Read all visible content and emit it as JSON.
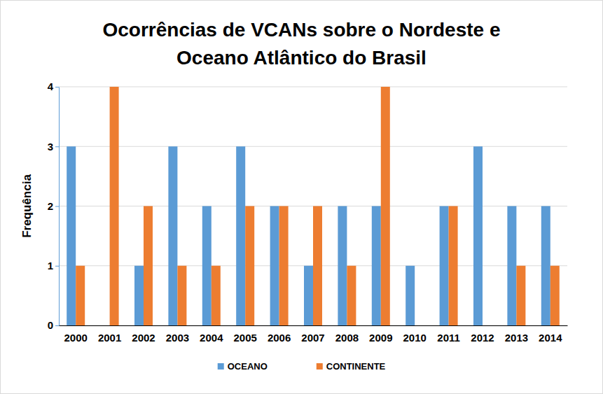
{
  "chart_data": {
    "type": "bar",
    "title": "Ocorrências de VCANs sobre o Nordeste  e\nOceano Atlântico do Brasil",
    "y_label": "Frequência",
    "categories": [
      "2000",
      "2001",
      "2002",
      "2003",
      "2004",
      "2005",
      "2006",
      "2007",
      "2008",
      "2009",
      "2010",
      "2011",
      "2012",
      "2013",
      "2014"
    ],
    "series": [
      {
        "name": "OCEANO",
        "color": "#5b9bd5",
        "values": [
          3,
          0,
          1,
          3,
          2,
          3,
          2,
          1,
          2,
          2,
          1,
          2,
          3,
          2,
          2
        ]
      },
      {
        "name": "CONTINENTE",
        "color": "#ed7d31",
        "values": [
          1,
          4,
          2,
          1,
          1,
          2,
          2,
          2,
          1,
          4,
          0,
          2,
          0,
          1,
          1
        ]
      }
    ],
    "ylim": [
      0,
      4
    ],
    "yticks": [
      0,
      1,
      2,
      3,
      4
    ],
    "grid": true,
    "legend": "bottom"
  }
}
